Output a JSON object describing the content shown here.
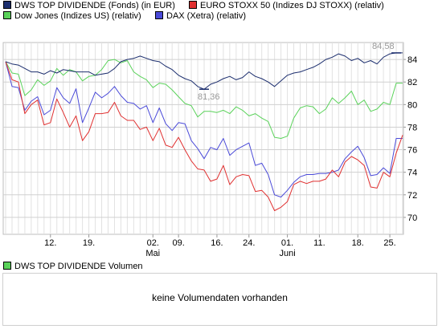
{
  "legend": {
    "items": [
      {
        "label": "DWS TOP DIVIDENDE (Fonds) (in EUR)",
        "color": "#1c2e6e"
      },
      {
        "label": "EURO STOXX 50 (Indizes DJ STOXX) (relativ)",
        "color": "#e03030"
      },
      {
        "label": "Dow Jones (Indizes US) (relativ)",
        "color": "#5ad25a"
      },
      {
        "label": "DAX (Xetra) (relativ)",
        "color": "#4a4ad8"
      }
    ]
  },
  "volume": {
    "legend_label": "DWS TOP DIVIDENDE Volumen",
    "legend_color": "#5ad25a",
    "message": "keine Volumendaten vorhanden"
  },
  "chart_data": {
    "type": "line",
    "x_tick_labels": [
      "12.",
      "19.",
      "02.",
      "09.",
      "16.",
      "24.",
      "01.",
      "11.",
      "18.",
      "25."
    ],
    "x_month_labels": [
      {
        "label": "Mai",
        "under_tick": "02."
      },
      {
        "label": "Juni",
        "under_tick": "01."
      }
    ],
    "ylim": [
      68.5,
      85.5
    ],
    "y_ticks": [
      70,
      72,
      74,
      76,
      78,
      80,
      82,
      84
    ],
    "grid": true,
    "annotations": [
      {
        "text": "81,36",
        "series": "DWS TOP DIVIDENDE (Fonds) (in EUR)",
        "at": "min"
      },
      {
        "text": "84,58",
        "series": "DWS TOP DIVIDENDE (Fonds) (in EUR)",
        "at": "max"
      }
    ],
    "series": [
      {
        "name": "DWS TOP DIVIDENDE (Fonds) (in EUR)",
        "color": "#1c2e6e",
        "values": [
          83.8,
          83.6,
          83.5,
          83.2,
          82.9,
          82.9,
          82.7,
          83.0,
          82.8,
          83.1,
          83.0,
          82.9,
          82.9,
          82.9,
          82.6,
          82.7,
          82.8,
          83.2,
          83.8,
          84.0,
          84.1,
          84.3,
          84.1,
          83.9,
          83.8,
          83.4,
          83.1,
          82.6,
          82.3,
          82.1,
          81.6,
          81.36,
          81.8,
          82.0,
          82.3,
          82.5,
          82.2,
          82.4,
          82.9,
          82.5,
          82.3,
          82.0,
          81.6,
          82.1,
          82.6,
          82.8,
          82.9,
          83.1,
          83.3,
          83.6,
          84.0,
          84.2,
          84.5,
          84.3,
          83.9,
          84.1,
          83.7,
          83.9,
          83.6,
          84.2,
          84.5,
          84.58,
          84.58
        ]
      },
      {
        "name": "EURO STOXX 50 (Indizes DJ STOXX) (relativ)",
        "color": "#e03030",
        "values": [
          83.8,
          82.2,
          82.0,
          79.2,
          80.0,
          80.4,
          78.2,
          78.4,
          80.5,
          79.3,
          78.0,
          79.0,
          76.8,
          77.6,
          79.2,
          79.2,
          79.3,
          80.2,
          79.0,
          78.6,
          78.6,
          77.8,
          78.0,
          76.8,
          77.9,
          76.4,
          76.2,
          77.1,
          76.0,
          75.0,
          74.3,
          74.2,
          73.2,
          73.4,
          74.6,
          72.9,
          73.6,
          73.8,
          73.7,
          72.3,
          72.4,
          71.8,
          70.6,
          70.9,
          71.4,
          72.9,
          73.2,
          73.0,
          73.2,
          73.2,
          73.4,
          74.2,
          73.6,
          74.9,
          75.4,
          75.1,
          74.6,
          72.7,
          72.6,
          74.0,
          73.6,
          75.7,
          77.3
        ]
      },
      {
        "name": "Dow Jones (Indizes US) (relativ)",
        "color": "#5ad25a",
        "values": [
          83.8,
          82.8,
          82.7,
          80.8,
          81.3,
          82.2,
          81.7,
          82.1,
          83.2,
          82.6,
          83.1,
          82.9,
          82.1,
          82.5,
          82.6,
          83.1,
          83.9,
          84.0,
          83.7,
          83.9,
          82.9,
          82.5,
          82.2,
          81.5,
          81.9,
          81.8,
          81.3,
          80.7,
          80.1,
          79.9,
          78.9,
          79.4,
          79.4,
          79.3,
          79.5,
          79.2,
          79.8,
          79.5,
          79.0,
          79.2,
          78.8,
          78.5,
          77.1,
          77.0,
          77.2,
          78.8,
          79.7,
          79.9,
          79.8,
          79.2,
          79.6,
          80.6,
          80.1,
          80.6,
          81.2,
          80.0,
          80.4,
          79.4,
          79.6,
          80.2,
          80.0,
          81.9,
          81.9
        ]
      },
      {
        "name": "DAX (Xetra) (relativ)",
        "color": "#4a4ad8",
        "values": [
          83.8,
          81.6,
          81.5,
          79.5,
          80.3,
          80.7,
          79.1,
          79.5,
          81.5,
          80.6,
          80.1,
          81.4,
          78.4,
          79.7,
          81.1,
          80.6,
          81.0,
          81.6,
          80.8,
          80.2,
          80.1,
          79.6,
          79.9,
          78.4,
          79.7,
          78.3,
          77.7,
          78.4,
          78.3,
          76.8,
          76.1,
          75.2,
          76.2,
          76.0,
          77.0,
          75.5,
          76.0,
          76.3,
          76.6,
          74.6,
          74.8,
          73.8,
          72.0,
          71.8,
          72.4,
          73.1,
          73.6,
          73.8,
          73.8,
          73.9,
          73.9,
          74.0,
          74.2,
          75.2,
          75.8,
          76.3,
          75.3,
          73.7,
          73.8,
          74.4,
          73.9,
          77.0,
          77.0
        ]
      }
    ]
  }
}
